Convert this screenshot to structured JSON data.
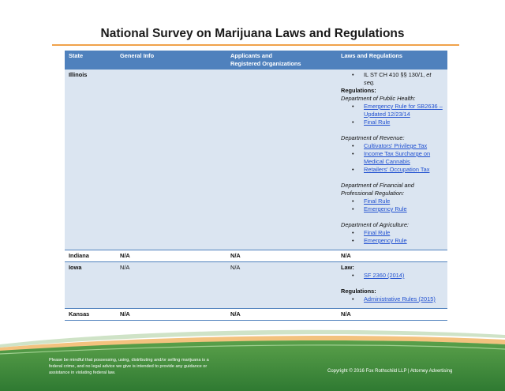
{
  "title": "National Survey on Marijuana Laws and Regulations",
  "table": {
    "headers": [
      "State",
      "General Info",
      "Applicants and Registered Organizations",
      "Laws and Regulations"
    ],
    "header_line1": "Applicants and",
    "header_line2": "Registered Organizations",
    "illinois": {
      "state": "Illinois",
      "statute_prefix": "IL ST CH 410 §§ 130/1, ",
      "statute_italic": "et seq.",
      "regs_label": "Regulations:",
      "dept_public_health": "Department of Public Health:",
      "public_health_links": [
        "Emergency Rule for SB2636 –",
        "Updated 12/23/14",
        "Final Rule"
      ],
      "dept_revenue": "Department of Revenue:",
      "revenue_links": [
        "Cultivators' Privilege Tax",
        "Income Tax Surcharge on",
        "Medical Cannabis",
        "Retailers' Occupation Tax"
      ],
      "dept_financial_1": "Department of Financial and",
      "dept_financial_2": "Professional Regulation:",
      "financial_links": [
        "Final Rule",
        "Emergency Rule"
      ],
      "dept_agriculture": "Department of Agriculture:",
      "agriculture_links": [
        "Final Rule",
        "Emergency Rule"
      ]
    },
    "indiana": {
      "state": "Indiana",
      "general": "N/A",
      "applicants": "N/A",
      "laws": "N/A"
    },
    "iowa": {
      "state": "Iowa",
      "general": "N/A",
      "applicants": "N/A",
      "law_label": "Law:",
      "law_link": "SF 2360 (2014)",
      "regs_label": "Regulations:",
      "regs_link": "Administrative Rules (2015)"
    },
    "kansas": {
      "state": "Kansas",
      "general": "N/A",
      "applicants": "N/A",
      "laws": "N/A"
    }
  },
  "footer": {
    "disclaimer": "Please be mindful that possessing, using, distributing and/or selling marijuana is a federal crime, and no legal advice we give is intended to provide any guidance or assistance in violating federal law.",
    "copyright": "Copyright © 2016 Fox Rothschild LLP | Attorney Advertising"
  },
  "colors": {
    "header_blue": "#4f81bd",
    "band_blue": "#dbe5f1",
    "orange_accent": "#f0a24a",
    "footer_green": "#3f8a3c",
    "link_blue": "#1f4fd0"
  }
}
